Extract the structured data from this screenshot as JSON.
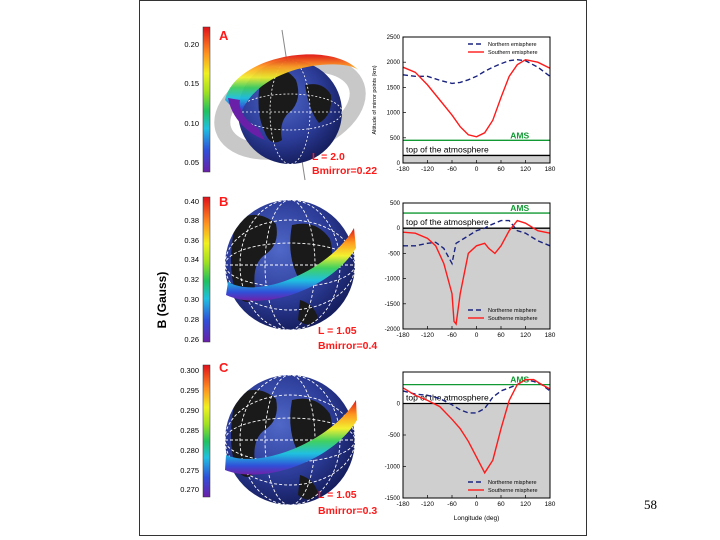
{
  "page_number": "58",
  "shared_colorbar_label": "B  (Gauss)",
  "colors": {
    "northern": "#1a237e",
    "southern": "#ff1a1a",
    "ams": "#119933",
    "atmosphere": "#cfcfcf",
    "panel_label": "#ff1a1a"
  },
  "panels": [
    {
      "id": "A",
      "colorbar_ticks": [
        "0.20",
        "0.15",
        "0.10",
        "0.05"
      ],
      "annotation_L": "L = 2.0",
      "annotation_B": "Bmirror=0.22"
    },
    {
      "id": "B",
      "colorbar_ticks": [
        "0.40",
        "0.38",
        "0.36",
        "0.34",
        "0.32",
        "0.30",
        "0.28",
        "0.26"
      ],
      "annotation_L": "L = 1.05",
      "annotation_B": "Bmirror=0.4"
    },
    {
      "id": "C",
      "colorbar_ticks": [
        "0.300",
        "0.295",
        "0.290",
        "0.285",
        "0.280",
        "0.275",
        "0.270"
      ],
      "annotation_L": "L = 1.05",
      "annotation_B": "Bmirror=0.3"
    }
  ],
  "chart_data": [
    {
      "type": "line",
      "panel": "A",
      "xlabel": "",
      "ylabel": "Altitude of mirror points (km)",
      "x": [
        -180,
        -150,
        -120,
        -90,
        -60,
        -40,
        -20,
        0,
        20,
        40,
        60,
        80,
        100,
        120,
        150,
        180
      ],
      "xticks": [
        "-180",
        "-120",
        "-60",
        "0",
        "60",
        "120",
        "180"
      ],
      "yticks": [
        "0",
        "500",
        "1000",
        "1500",
        "2000",
        "2500"
      ],
      "xlim": [
        -180,
        180
      ],
      "ylim": [
        0,
        2500
      ],
      "atmosphere_top": 150,
      "atmosphere_label": "top of the atmosphere",
      "ams_level": 450,
      "ams_label": "AMS",
      "legend": [
        "Northern emisphere",
        "Southern emisphere"
      ],
      "series": [
        {
          "name": "Northern emisphere",
          "values": [
            1750,
            1720,
            1720,
            1640,
            1580,
            1600,
            1650,
            1720,
            1820,
            1900,
            1970,
            2030,
            2050,
            2030,
            1900,
            1720
          ]
        },
        {
          "name": "Southern emisphere",
          "values": [
            1900,
            1800,
            1550,
            1250,
            950,
            720,
            560,
            520,
            600,
            850,
            1300,
            1720,
            1950,
            2050,
            2000,
            1880
          ]
        }
      ]
    },
    {
      "type": "line",
      "panel": "B",
      "xlabel": "",
      "ylabel": "",
      "x": [
        -180,
        -150,
        -120,
        -100,
        -80,
        -60,
        -55,
        -50,
        -40,
        -20,
        0,
        20,
        30,
        45,
        60,
        80,
        100,
        120,
        150,
        180
      ],
      "xticks": [
        "-180",
        "-120",
        "-60",
        "0",
        "60",
        "120",
        "180"
      ],
      "yticks": [
        "500",
        "0",
        "-500",
        "-1000",
        "-1500",
        "-2000"
      ],
      "xlim": [
        -180,
        180
      ],
      "ylim": [
        -2000,
        500
      ],
      "atmosphere_top": 0,
      "atmosphere_label": "top of the atmosphere",
      "ams_level": 300,
      "ams_label": "AMS",
      "legend": [
        "Northerne misphere",
        "Southerne misphere"
      ],
      "series": [
        {
          "name": "Northerne misphere",
          "values": [
            -350,
            -350,
            -300,
            -280,
            -400,
            -700,
            -500,
            -300,
            -250,
            -150,
            -50,
            0,
            50,
            100,
            150,
            150,
            -50,
            -100,
            -250,
            -350
          ]
        },
        {
          "name": "Southerne misphere",
          "values": [
            -80,
            -100,
            -200,
            -350,
            -700,
            -1300,
            -1850,
            -1900,
            -1300,
            -500,
            -350,
            -300,
            -400,
            -500,
            -350,
            -50,
            150,
            100,
            -50,
            -100
          ]
        }
      ]
    },
    {
      "type": "line",
      "panel": "C",
      "xlabel": "Longitude (deg)",
      "ylabel": "",
      "x": [
        -180,
        -150,
        -120,
        -90,
        -60,
        -40,
        -20,
        0,
        20,
        40,
        60,
        80,
        100,
        120,
        140,
        160,
        180
      ],
      "xticks": [
        "-180",
        "-120",
        "-60",
        "0",
        "60",
        "120",
        "180"
      ],
      "yticks": [
        "0",
        "-500",
        "-1000",
        "-1500"
      ],
      "xlim": [
        -180,
        180
      ],
      "ylim": [
        -1500,
        500
      ],
      "atmosphere_top": 0,
      "atmosphere_label": "top of the atmosphere",
      "ams_level": 300,
      "ams_label": "AMS",
      "legend": [
        "Northerne misphere",
        "Southerne misphere"
      ],
      "series": [
        {
          "name": "Northerne misphere",
          "values": [
            200,
            150,
            130,
            80,
            -20,
            -100,
            -150,
            -150,
            -80,
            100,
            200,
            250,
            300,
            380,
            350,
            300,
            200
          ]
        },
        {
          "name": "Southerne misphere",
          "values": [
            250,
            130,
            50,
            -50,
            -250,
            -400,
            -600,
            -850,
            -1100,
            -900,
            -400,
            50,
            300,
            380,
            380,
            300,
            230
          ]
        }
      ]
    }
  ]
}
